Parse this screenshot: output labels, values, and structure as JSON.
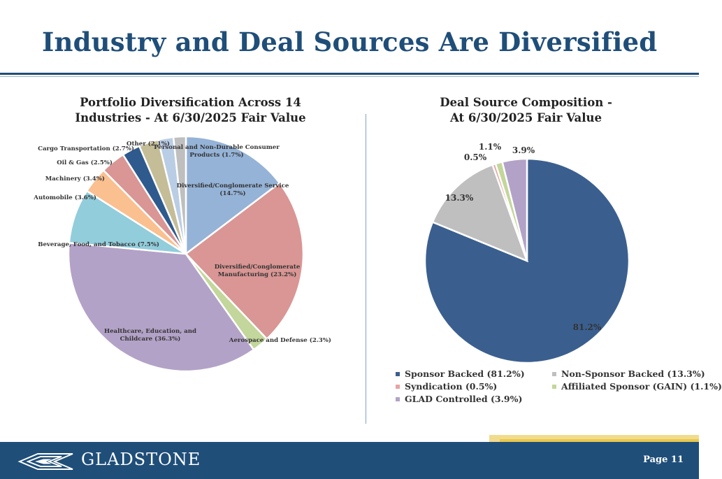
{
  "page": {
    "title": "Industry and Deal Sources Are Diversified",
    "footer_logo": "GLADSTONE",
    "page_number": "Page 11",
    "logo_icon": "gladstone-logo-mark"
  },
  "chart_data": [
    {
      "type": "pie",
      "title": "Portfolio Diversification Across 14 Industries - At 6/30/2025 Fair Value",
      "title_lines": [
        "Portfolio Diversification Across 14",
        "Industries - At 6/30/2025 Fair Value"
      ],
      "slices": [
        {
          "label": "Diversified/Conglomerate Service (14.7%)",
          "value": 14.7,
          "color": "#95b3d7"
        },
        {
          "label": "Diversified/Conglomerate Manufacturing (23.2%)",
          "value": 23.2,
          "color": "#d99694"
        },
        {
          "label": "Aerospace and Defense (2.3%)",
          "value": 2.3,
          "color": "#c3d69b"
        },
        {
          "label": "Healthcare, Education, and Childcare (36.3%)",
          "value": 36.3,
          "color": "#b3a2c7"
        },
        {
          "label": "Beverage, Food, and Tobacco (7.5%)",
          "value": 7.5,
          "color": "#92cddc"
        },
        {
          "label": "Automobile (3.6%)",
          "value": 3.6,
          "color": "#fac090"
        },
        {
          "label": "Machinery (3.4%)",
          "value": 3.4,
          "color": "#d99694"
        },
        {
          "label": "Oil & Gas (2.5%)",
          "value": 2.5,
          "color": "#2e5a8e"
        },
        {
          "label": "Cargo Transportation (2.7%)",
          "value": 2.7,
          "color": "#c4bd97"
        },
        {
          "label": "Other (2.1%)",
          "value": 2.1,
          "color": "#b9cde5"
        },
        {
          "label": "Personal and Non-Durable Consumer Products (1.7%)",
          "value": 1.7,
          "color": "#bfbfbf"
        }
      ]
    },
    {
      "type": "pie",
      "title": "Deal Source Composition - At 6/30/2025 Fair Value",
      "title_lines": [
        "Deal Source Composition -",
        "At 6/30/2025 Fair Value"
      ],
      "slices": [
        {
          "label": "Sponsor Backed (81.2%)",
          "data_label": "81.2%",
          "value": 81.2,
          "color": "#3a5f8f"
        },
        {
          "label": "Non-Sponsor Backed (13.3%)",
          "data_label": "13.3%",
          "value": 13.3,
          "color": "#bfbfbf"
        },
        {
          "label": "Syndication (0.5%)",
          "data_label": "0.5%",
          "value": 0.5,
          "color": "#e6a5a3"
        },
        {
          "label": "Affiliated Sponsor (GAIN) (1.1%)",
          "data_label": "1.1%",
          "value": 1.1,
          "color": "#c3d69b"
        },
        {
          "label": "GLAD Controlled (3.9%)",
          "data_label": "3.9%",
          "value": 3.9,
          "color": "#b3a2c7"
        }
      ],
      "legend": "bottom"
    }
  ]
}
